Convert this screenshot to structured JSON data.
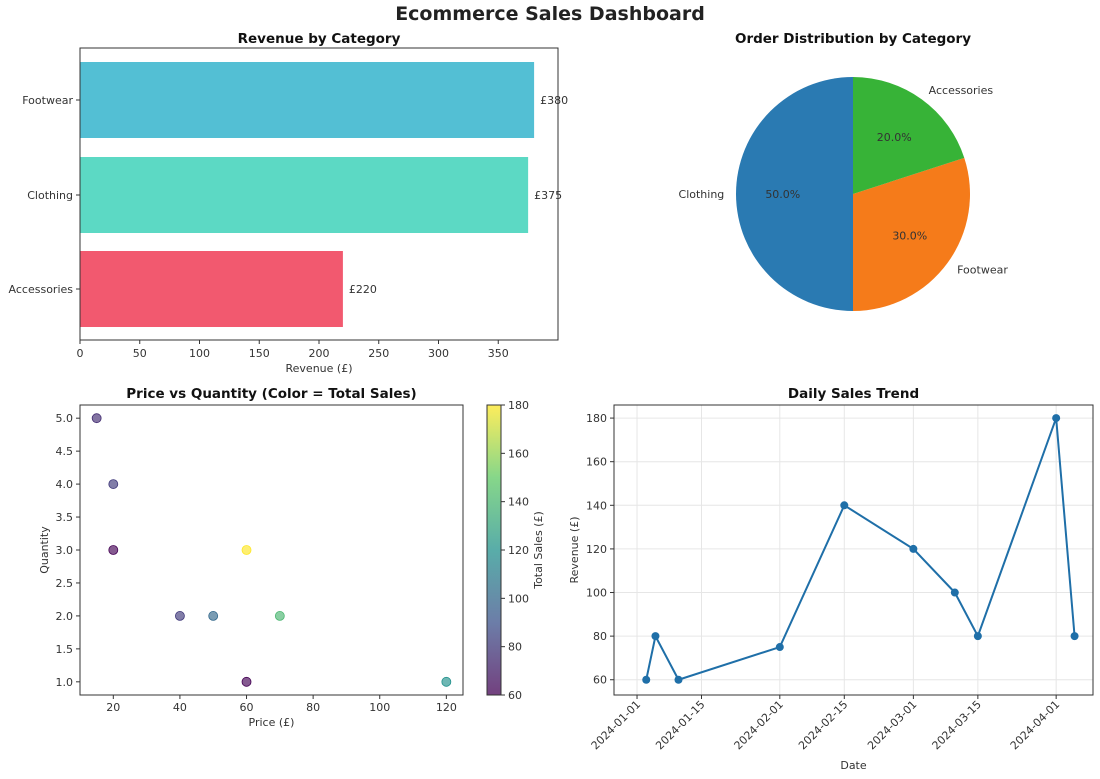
{
  "title": "Ecommerce Sales Dashboard",
  "chart_data": [
    {
      "type": "bar",
      "orientation": "horizontal",
      "title": "Revenue by Category",
      "xlabel": "Revenue (£)",
      "ylabel": "",
      "categories": [
        "Accessories",
        "Clothing",
        "Footwear"
      ],
      "values": [
        220,
        375,
        380
      ],
      "value_labels": [
        "£220",
        "£375",
        "£380"
      ],
      "colors": [
        "#f2596f",
        "#5cd9c4",
        "#53bfd4"
      ],
      "xlim": [
        0,
        400
      ],
      "xticks": [
        "0",
        "50",
        "100",
        "150",
        "200",
        "250",
        "300",
        "350"
      ]
    },
    {
      "type": "pie",
      "title": "Order Distribution by Category",
      "labels": [
        "Clothing",
        "Footwear",
        "Accessories"
      ],
      "values": [
        50.0,
        30.0,
        20.0
      ],
      "pct_labels": [
        "50.0%",
        "30.0%",
        "20.0%"
      ],
      "colors": [
        "#2a7ab2",
        "#f57b1a",
        "#37b337"
      ]
    },
    {
      "type": "scatter",
      "title": "Price vs Quantity (Color = Total Sales)",
      "xlabel": "Price (£)",
      "ylabel": "Quantity",
      "colorbar_label": "Total Sales (£)",
      "colormap": "viridis",
      "points": [
        {
          "x": 15,
          "y": 5,
          "c": 75
        },
        {
          "x": 20,
          "y": 4,
          "c": 80
        },
        {
          "x": 20,
          "y": 3,
          "c": 60
        },
        {
          "x": 40,
          "y": 2,
          "c": 80
        },
        {
          "x": 50,
          "y": 2,
          "c": 100
        },
        {
          "x": 60,
          "y": 3,
          "c": 180
        },
        {
          "x": 60,
          "y": 1,
          "c": 60
        },
        {
          "x": 70,
          "y": 2,
          "c": 140
        },
        {
          "x": 120,
          "y": 1,
          "c": 120
        }
      ],
      "xlim": [
        10,
        125
      ],
      "ylim": [
        0.8,
        5.2
      ],
      "xticks": [
        "20",
        "40",
        "60",
        "80",
        "100",
        "120"
      ],
      "yticks": [
        "1.0",
        "1.5",
        "2.0",
        "2.5",
        "3.0",
        "3.5",
        "4.0",
        "4.5",
        "5.0"
      ],
      "clim": [
        60,
        180
      ],
      "cticks": [
        "60",
        "80",
        "100",
        "120",
        "140",
        "160",
        "180"
      ]
    },
    {
      "type": "line",
      "title": "Daily Sales Trend",
      "xlabel": "Date",
      "ylabel": "Revenue (£)",
      "color": "#1f6fa8",
      "grid": true,
      "x": [
        "2024-01-03",
        "2024-01-05",
        "2024-01-10",
        "2024-02-01",
        "2024-02-15",
        "2024-03-01",
        "2024-03-10",
        "2024-03-15",
        "2024-04-01",
        "2024-04-05"
      ],
      "values": [
        60,
        80,
        60,
        75,
        140,
        120,
        100,
        80,
        180,
        80
      ],
      "xlim": [
        "2023-12-27",
        "2024-04-09"
      ],
      "ylim": [
        53,
        186
      ],
      "xticks": [
        "2024-01-01",
        "2024-01-15",
        "2024-02-01",
        "2024-02-15",
        "2024-03-01",
        "2024-03-15",
        "2024-04-01"
      ],
      "yticks": [
        "60",
        "80",
        "100",
        "120",
        "140",
        "160",
        "180"
      ]
    }
  ]
}
